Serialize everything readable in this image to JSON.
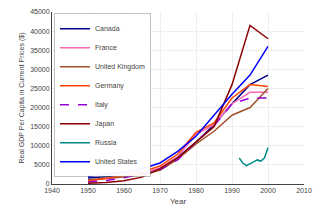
{
  "chart_data": {
    "type": "line",
    "xlabel": "Year",
    "ylabel": "Real GDP Per Capita in Current Prices ($)",
    "xlim": [
      1940,
      2010
    ],
    "ylim": [
      0,
      45000
    ],
    "xticks": [
      1940,
      1950,
      1960,
      1970,
      1980,
      1990,
      2000,
      2010
    ],
    "yticks": [
      0,
      5000,
      10000,
      15000,
      20000,
      25000,
      30000,
      35000,
      40000,
      45000
    ],
    "grid": true,
    "legend": "upper left",
    "series": [
      {
        "name": "Canada",
        "color": "#00008B",
        "line_style": "solid",
        "x": [
          1950,
          1955,
          1960,
          1965,
          1970,
          1975,
          1980,
          1985,
          1990,
          1995,
          2000
        ],
        "values": [
          1600,
          2000,
          2300,
          2900,
          4000,
          7000,
          11000,
          15500,
          21000,
          26000,
          28500
        ]
      },
      {
        "name": "France",
        "color": "#FF69B4",
        "line_style": "solid",
        "x": [
          1950,
          1955,
          1960,
          1965,
          1970,
          1975,
          1980,
          1985,
          1990,
          1995,
          2000
        ],
        "values": [
          900,
          1300,
          1800,
          2800,
          4200,
          7200,
          13000,
          15500,
          21000,
          24000,
          24000
        ]
      },
      {
        "name": "United Kingdom",
        "color": "#A0522D",
        "line_style": "solid",
        "x": [
          1950,
          1955,
          1960,
          1965,
          1970,
          1975,
          1980,
          1985,
          1990,
          1995,
          2000
        ],
        "values": [
          1100,
          1450,
          1900,
          2450,
          3600,
          6600,
          10500,
          13800,
          18000,
          20000,
          25000
        ]
      },
      {
        "name": "Germany",
        "color": "#FF4500",
        "line_style": "solid",
        "x": [
          1950,
          1955,
          1960,
          1965,
          1970,
          1975,
          1980,
          1985,
          1990,
          1995,
          2000
        ],
        "values": [
          750,
          1400,
          2200,
          3200,
          4700,
          7900,
          13500,
          16000,
          22500,
          26000,
          25500
        ]
      },
      {
        "name": "Italy",
        "color": "#9400D3",
        "line_style": "dashed",
        "x": [
          1950,
          1955,
          1960,
          1965,
          1970,
          1975,
          1980,
          1985,
          1990,
          1995,
          2000
        ],
        "values": [
          500,
          900,
          1600,
          2600,
          3800,
          6400,
          11000,
          15200,
          21000,
          22500,
          22500
        ]
      },
      {
        "name": "Japan",
        "color": "#8B0000",
        "line_style": "solid",
        "x": [
          1950,
          1955,
          1960,
          1965,
          1970,
          1975,
          1980,
          1985,
          1990,
          1995,
          2000
        ],
        "values": [
          200,
          400,
          850,
          1800,
          4000,
          6900,
          11000,
          15000,
          26000,
          41500,
          38000
        ]
      },
      {
        "name": "Russia",
        "color": "#008B8B",
        "line_style": "solid",
        "x": [
          1992,
          1993,
          1994,
          1995,
          1996,
          1997,
          1998,
          1999,
          2000
        ],
        "values": [
          6800,
          5500,
          4800,
          5200,
          5800,
          6300,
          6000,
          6800,
          9500
        ]
      },
      {
        "name": "United States",
        "color": "#0000FF",
        "line_style": "solid",
        "x": [
          1950,
          1955,
          1960,
          1965,
          1970,
          1975,
          1980,
          1985,
          1990,
          1995,
          2000
        ],
        "values": [
          1950,
          2600,
          3000,
          4000,
          5500,
          8600,
          12500,
          18000,
          23500,
          28500,
          36000
        ]
      }
    ]
  }
}
